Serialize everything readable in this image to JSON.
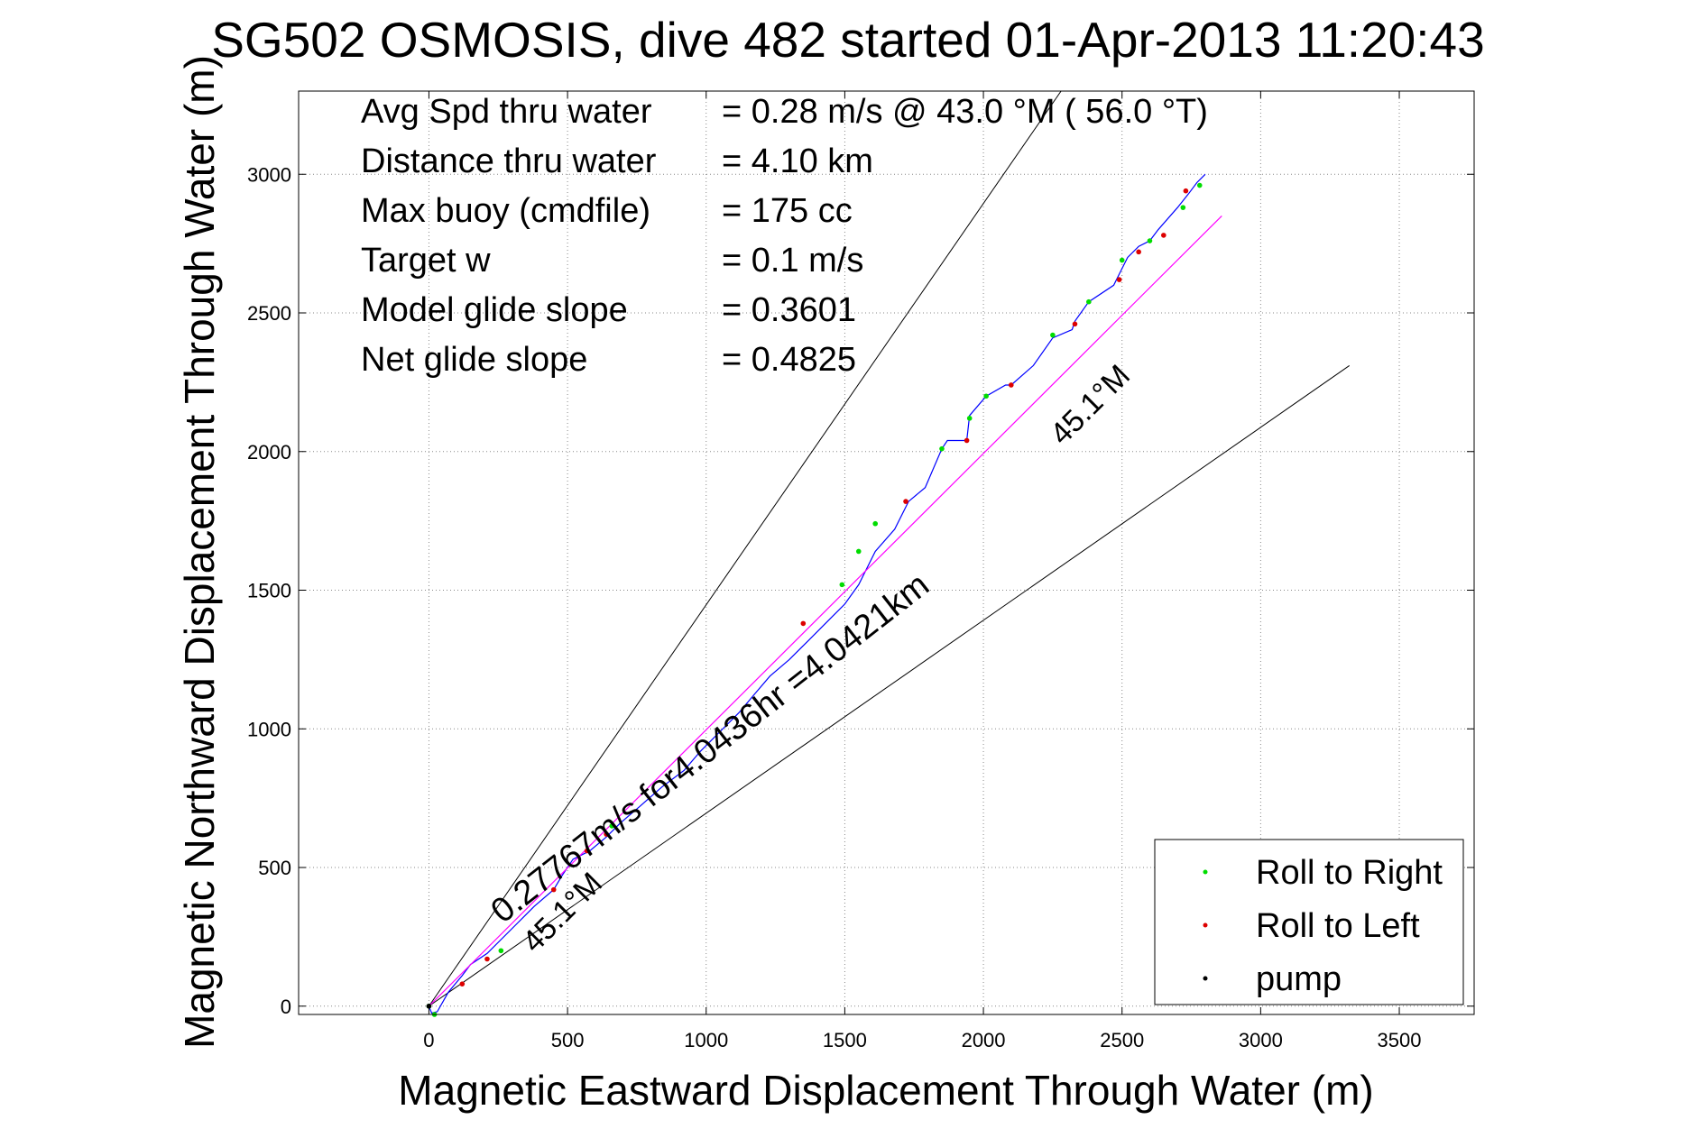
{
  "chart_data": {
    "type": "line",
    "title": "SG502 OSMOSIS, dive 482 started 01-Apr-2013 11:20:43",
    "xlabel": "Magnetic Eastward Displacement Through Water (m)",
    "ylabel": "Magnetic Northward Displacement Through Water (m)",
    "xlim": [
      -470,
      3770
    ],
    "ylim": [
      -30,
      3300
    ],
    "xticks": [
      0,
      500,
      1000,
      1500,
      2000,
      2500,
      3000,
      3500
    ],
    "yticks": [
      0,
      500,
      1000,
      1500,
      2000,
      2500,
      3000
    ],
    "grid": true,
    "legend_position": "bottom-right",
    "stats": [
      {
        "label": "Avg Spd thru water",
        "value": "=  0.28 m/s @  43.0 °M ( 56.0 °T)"
      },
      {
        "label": "Distance thru water",
        "value": "=  4.10 km"
      },
      {
        "label": "Max buoy (cmdfile)",
        "value": "= 175 cc"
      },
      {
        "label": "Target w",
        "value": "= 0.1 m/s"
      },
      {
        "label": "Model glide slope",
        "value": "= 0.3601"
      },
      {
        "label": "Net glide slope",
        "value": "= 0.4825"
      }
    ],
    "annotations": {
      "track_label": "0.27767m/s for4.0436hr =4.0421km",
      "heading_label_upper": "45.1°M",
      "heading_label_lower": "45.1°M"
    },
    "series": [
      {
        "name": "track",
        "color": "#0000ff",
        "x": [
          0,
          10,
          30,
          70,
          120,
          150,
          210,
          260,
          320,
          380,
          450,
          480,
          520,
          580,
          640,
          690,
          760,
          840,
          920,
          980,
          1050,
          1120,
          1170,
          1230,
          1300,
          1370,
          1440,
          1500,
          1550,
          1610,
          1680,
          1730,
          1790,
          1850,
          1870,
          1940,
          1950,
          2010,
          2080,
          2100,
          2180,
          2250,
          2320,
          2330,
          2380,
          2470,
          2490,
          2520,
          2560,
          2600,
          2630,
          2700,
          2740,
          2770,
          2800
        ],
        "y": [
          0,
          -25,
          -20,
          50,
          110,
          150,
          190,
          240,
          300,
          360,
          420,
          470,
          530,
          560,
          610,
          660,
          720,
          790,
          850,
          920,
          990,
          1060,
          1120,
          1190,
          1250,
          1320,
          1390,
          1450,
          1520,
          1640,
          1720,
          1820,
          1870,
          2010,
          2040,
          2040,
          2130,
          2200,
          2240,
          2240,
          2310,
          2410,
          2440,
          2470,
          2540,
          2600,
          2640,
          2700,
          2740,
          2760,
          2800,
          2880,
          2930,
          2970,
          3000
        ]
      },
      {
        "name": "heading line",
        "color": "#ff00ff",
        "x": [
          0,
          2860
        ],
        "y": [
          0,
          2850
        ]
      }
    ],
    "cone_lines": [
      {
        "color": "#000000",
        "x": [
          0,
          2280
        ],
        "y": [
          0,
          3300
        ]
      },
      {
        "color": "#000000",
        "x": [
          0,
          3320
        ],
        "y": [
          0,
          2310
        ]
      }
    ],
    "markers": {
      "roll_right": {
        "name": "Roll to Right",
        "color": "#00dd00",
        "x": [
          0,
          20,
          260,
          660,
          1490,
          1550,
          1610,
          1850,
          1950,
          2010,
          2250,
          2380,
          2500,
          2600,
          2720,
          2780
        ],
        "y": [
          0,
          -30,
          200,
          650,
          1520,
          1640,
          1740,
          2010,
          2120,
          2200,
          2420,
          2540,
          2690,
          2760,
          2880,
          2960
        ]
      },
      "roll_left": {
        "name": "Roll to Left",
        "color": "#dd0000",
        "x": [
          120,
          210,
          450,
          570,
          640,
          1350,
          1720,
          1940,
          2100,
          2330,
          2490,
          2560,
          2650,
          2730
        ],
        "y": [
          80,
          170,
          420,
          560,
          620,
          1380,
          1820,
          2040,
          2240,
          2460,
          2620,
          2720,
          2780,
          2940
        ]
      },
      "pump": {
        "name": "pump",
        "color": "#000000",
        "x": [
          0
        ],
        "y": [
          0
        ]
      }
    },
    "legend": [
      "Roll to Right",
      "Roll to Left",
      "pump"
    ]
  }
}
